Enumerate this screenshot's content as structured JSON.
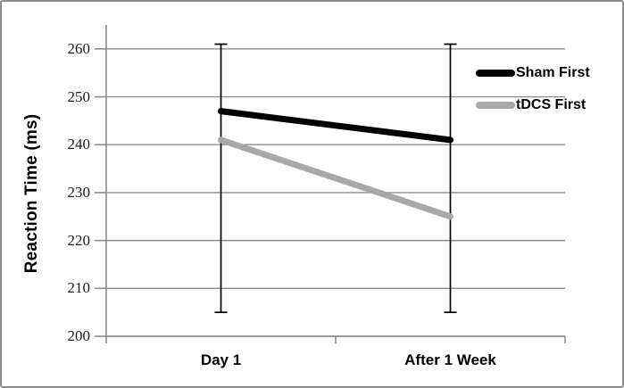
{
  "chart_data": {
    "type": "line",
    "title": "",
    "xlabel": "",
    "ylabel": "Reaction Time (ms)",
    "categories": [
      "Day 1",
      "After 1 Week"
    ],
    "series": [
      {
        "name": "Sham First",
        "values": [
          247,
          241
        ],
        "color": "#000000"
      },
      {
        "name": "tDCS First",
        "values": [
          241,
          225
        ],
        "color": "#a8a8a8"
      }
    ],
    "error_bars": [
      {
        "category": "Day 1",
        "low": 205,
        "high": 261
      },
      {
        "category": "After 1 Week",
        "low": 205,
        "high": 261
      }
    ],
    "ylim": [
      200,
      265
    ],
    "yticks": [
      200,
      210,
      220,
      230,
      240,
      250,
      260
    ],
    "grid": true,
    "legend_position": "right-inside"
  },
  "colors": {
    "grid": "#8e8e8e",
    "axis": "#8e8e8e",
    "error_bar": "#000000",
    "frame_border": "#8c8c8c",
    "tick_text": "#1a1a1a"
  }
}
